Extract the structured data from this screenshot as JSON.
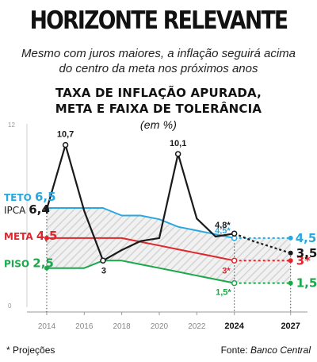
{
  "header": {
    "title": "HORIZONTE RELEVANTE",
    "subtitle_line1": "Mesmo com juros maiores, a inflação seguirá acima",
    "subtitle_line2": "do centro da meta nos próximos anos"
  },
  "chart_title": {
    "line1": "TAXA DE INFLAÇÃO APURADA,",
    "line2": "META E FAIXA DE TOLERÂNCIA",
    "unit": "(em %)"
  },
  "footer": {
    "note": "* Projeções",
    "source_prefix": "Fonte: ",
    "source_name": "Banco Central"
  },
  "colors": {
    "ipca": "#1a1a1a",
    "teto": "#2aa8de",
    "meta": "#e0262b",
    "piso": "#1aa84a",
    "band": "#d9d9d9",
    "axis": "#9a9a9a"
  },
  "chart_data": {
    "type": "line",
    "xlim": [
      2013.2,
      2027.9
    ],
    "ylim": [
      0,
      12
    ],
    "y_ticks": [
      "12",
      "0"
    ],
    "x_ticks": [
      {
        "value": 2014,
        "label": "2014",
        "bold": false
      },
      {
        "value": 2016,
        "label": "2016",
        "bold": false
      },
      {
        "value": 2018,
        "label": "2018",
        "bold": false
      },
      {
        "value": 2020,
        "label": "2020",
        "bold": false
      },
      {
        "value": 2022,
        "label": "2022",
        "bold": false
      },
      {
        "value": 2024,
        "label": "2024",
        "bold": true
      },
      {
        "value": 2027,
        "label": "2027",
        "bold": true
      }
    ],
    "series": [
      {
        "key": "ipca",
        "name": "IPCA",
        "start_label": "IPCA 6,4",
        "x": [
          2014,
          2015,
          2016,
          2017,
          2018,
          2019,
          2020,
          2021,
          2022,
          2023,
          2024
        ],
        "y": [
          6.4,
          10.7,
          6.3,
          3.0,
          3.7,
          4.3,
          4.5,
          10.1,
          5.8,
          4.6,
          4.8
        ],
        "projection": {
          "x": [
            2024,
            2025,
            2026,
            2027
          ],
          "y": [
            4.8,
            4.3,
            3.9,
            3.5
          ]
        },
        "point_labels": [
          {
            "x": 2015,
            "y": 10.7,
            "text": "10,7"
          },
          {
            "x": 2017,
            "y": 3.0,
            "text": "3"
          },
          {
            "x": 2021,
            "y": 10.1,
            "text": "10,1"
          },
          {
            "x": 2024,
            "y": 4.8,
            "text": "4,8*"
          }
        ],
        "end_label": "3,5*"
      },
      {
        "key": "teto",
        "name": "TETO",
        "start_label": "TETO 6,5",
        "x": [
          2014,
          2016,
          2017,
          2018,
          2019,
          2020,
          2021,
          2022,
          2023,
          2024
        ],
        "y": [
          6.5,
          6.5,
          6.5,
          6.0,
          6.0,
          5.75,
          5.25,
          5.0,
          4.75,
          4.5
        ],
        "projection": {
          "x": [
            2024,
            2027
          ],
          "y": [
            4.5,
            4.5
          ]
        },
        "point_labels": [
          {
            "x": 2024,
            "y": 4.5,
            "text": "4,5*"
          }
        ],
        "end_label": "4,5*"
      },
      {
        "key": "meta",
        "name": "META",
        "start_label": "META 4,5",
        "x": [
          2014,
          2016,
          2017,
          2018,
          2019,
          2020,
          2021,
          2022,
          2023,
          2024
        ],
        "y": [
          4.5,
          4.5,
          4.5,
          4.5,
          4.25,
          4.0,
          3.75,
          3.5,
          3.25,
          3.0
        ],
        "projection": {
          "x": [
            2024,
            2027
          ],
          "y": [
            3.0,
            3.0
          ]
        },
        "point_labels": [
          {
            "x": 2024,
            "y": 3.0,
            "text": "3*"
          }
        ],
        "end_label": "3*"
      },
      {
        "key": "piso",
        "name": "PISO",
        "start_label": "PISO 2,5",
        "x": [
          2014,
          2016,
          2017,
          2018,
          2019,
          2020,
          2021,
          2022,
          2023,
          2024
        ],
        "y": [
          2.5,
          2.5,
          3.0,
          3.0,
          2.75,
          2.5,
          2.25,
          2.0,
          1.75,
          1.5
        ],
        "projection": {
          "x": [
            2024,
            2027
          ],
          "y": [
            1.5,
            1.5
          ]
        },
        "point_labels": [
          {
            "x": 2024,
            "y": 1.5,
            "text": "1,5*"
          }
        ],
        "end_label": "1,5*"
      }
    ]
  }
}
